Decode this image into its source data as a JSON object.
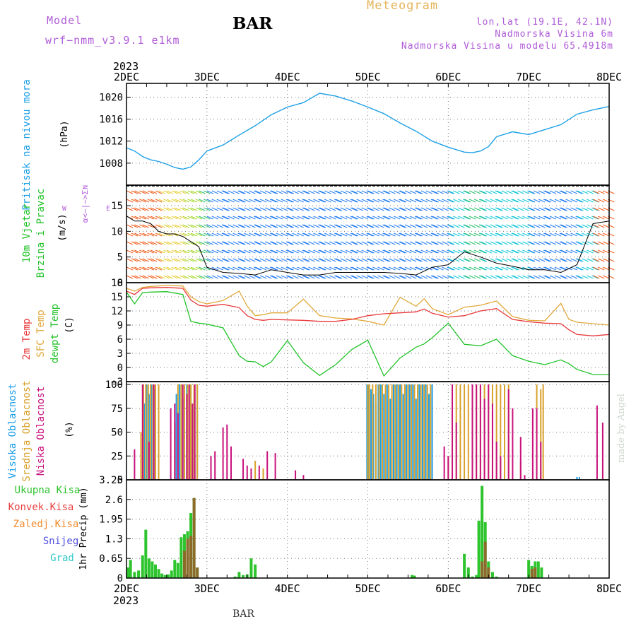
{
  "header": {
    "model_label": "Model",
    "model_name": "wrf−nmm_v3.9.1  e1km",
    "station": "BAR",
    "title": "Meteogram",
    "lonlat": "lon,lat (19.1E, 42.1N)",
    "elevation": "Nadmorska Visina 6m",
    "model_elevation": "Nadmorska Visina u modelu 65.4918m",
    "footer_station": "BAR",
    "credit": "made by Angel"
  },
  "colors": {
    "pressure": "#1ea0e6",
    "temp2m": "#e8383a",
    "sfc_temp": "#e1a83a",
    "dewpt": "#22c32a",
    "high_cloud": "#1e9ee8",
    "mid_cloud": "#d8a12a",
    "low_cloud": "#c8127c",
    "precip_total": "#2ec42e",
    "precip_conv": "#e84040",
    "precip_frozen": "#f08a2a",
    "snow": "#5050e0",
    "graupel": "#30c8c8",
    "accent_label": "#b05cd8"
  },
  "x_axis": {
    "top_year": "2023",
    "bottom_year": "2023",
    "ticks": [
      "2DEC",
      "3DEC",
      "4DEC",
      "5DEC",
      "6DEC",
      "7DEC",
      "8DEC"
    ]
  },
  "chart_data": [
    {
      "type": "line",
      "panel": "pressure",
      "ylabel_main": "Pritisak na nivou mora",
      "ylabel_unit": "(hPa)",
      "yticks": [
        "1008",
        "1012",
        "1016",
        "1020"
      ],
      "ylim": [
        1004,
        1022.5
      ],
      "xlim": [
        0,
        6
      ],
      "x": [
        0,
        0.1,
        0.2,
        0.3,
        0.4,
        0.5,
        0.6,
        0.7,
        0.8,
        0.9,
        1.0,
        1.2,
        1.4,
        1.6,
        1.8,
        2.0,
        2.2,
        2.4,
        2.6,
        2.8,
        3.0,
        3.2,
        3.4,
        3.6,
        3.8,
        4.0,
        4.2,
        4.3,
        4.4,
        4.5,
        4.6,
        4.8,
        5.0,
        5.2,
        5.4,
        5.6,
        5.8,
        6.0
      ],
      "series": [
        {
          "values": [
            1010.8,
            1010.2,
            1009.2,
            1008.6,
            1008.3,
            1007.8,
            1007.2,
            1006.9,
            1007.3,
            1008.6,
            1010.2,
            1011.3,
            1013.1,
            1014.8,
            1016.8,
            1018.2,
            1019.0,
            1020.7,
            1020.2,
            1019.3,
            1018.2,
            1017.0,
            1015.3,
            1013.8,
            1012.0,
            1010.9,
            1010.0,
            1009.9,
            1010.2,
            1011.0,
            1012.8,
            1013.7,
            1013.2,
            1014.1,
            1015.0,
            1016.9,
            1017.7,
            1018.3
          ]
        }
      ]
    },
    {
      "type": "barbs",
      "panel": "wind",
      "ylabel_main": "10m Vjetar",
      "ylabel_sub": "Brzina i Pravac",
      "ylabel_unit": "(m/s)",
      "compass_v": "α<−|−>Σ",
      "compass_w": "W",
      "compass_e": "E",
      "compass_n": "N",
      "yticks": [
        "0",
        "5",
        "10",
        "15"
      ],
      "ylim": [
        0,
        19
      ],
      "xlim": [
        0,
        6
      ],
      "x": [
        0,
        0.1,
        0.2,
        0.3,
        0.4,
        0.5,
        0.6,
        0.7,
        0.8,
        0.9,
        1.0,
        1.2,
        1.4,
        1.6,
        1.8,
        2.0,
        2.2,
        2.4,
        2.6,
        2.8,
        3.0,
        3.2,
        3.4,
        3.6,
        3.8,
        4.0,
        4.2,
        4.4,
        4.6,
        4.8,
        5.0,
        5.2,
        5.4,
        5.6,
        5.8,
        6.0
      ],
      "series": [
        {
          "values": [
            13,
            12,
            12,
            11.5,
            10,
            9.5,
            9.5,
            9,
            8,
            7,
            3,
            2,
            1.8,
            1.5,
            2.5,
            2,
            1.5,
            1.5,
            2,
            2,
            2,
            2,
            1.8,
            1.5,
            3,
            3.5,
            6,
            5,
            3.8,
            3.2,
            2.5,
            2.5,
            2,
            3.5,
            11.5,
            12
          ]
        }
      ]
    },
    {
      "type": "line",
      "panel": "temperature",
      "ylabel_lines": [
        "2m Temp",
        "SFC Temp",
        "dewpt Temp"
      ],
      "ylabel_unit": "(C)",
      "yticks": [
        "−3",
        "0",
        "3",
        "6",
        "9",
        "12",
        "15",
        "18"
      ],
      "ylim": [
        -3,
        18
      ],
      "xlim": [
        0,
        6
      ],
      "x": [
        0,
        0.1,
        0.2,
        0.3,
        0.5,
        0.7,
        0.8,
        0.9,
        1.0,
        1.2,
        1.4,
        1.5,
        1.6,
        1.7,
        1.8,
        2.0,
        2.2,
        2.4,
        2.6,
        2.8,
        3.0,
        3.2,
        3.4,
        3.6,
        3.7,
        3.8,
        4.0,
        4.2,
        4.4,
        4.6,
        4.8,
        5.0,
        5.2,
        5.4,
        5.5,
        5.6,
        5.8,
        6.0
      ],
      "series": [
        {
          "name": "2m Temp",
          "values": [
            16.2,
            15.5,
            16.8,
            16.9,
            17.0,
            16.8,
            14.3,
            13.2,
            13.0,
            13.4,
            12.7,
            11.0,
            10.2,
            10.0,
            10.2,
            10.1,
            10.0,
            9.8,
            9.8,
            10.2,
            11.0,
            11.4,
            11.6,
            11.8,
            12.4,
            11.5,
            10.7,
            11.0,
            12.0,
            12.5,
            10.2,
            9.7,
            9.4,
            9.3,
            8.0,
            7.0,
            6.7,
            7.0
          ]
        },
        {
          "name": "SFC Temp",
          "values": [
            16.8,
            16.2,
            17.0,
            17.2,
            17.4,
            17.3,
            15.0,
            14.0,
            13.5,
            14.2,
            16.2,
            13.0,
            11.0,
            11.2,
            11.6,
            11.6,
            14.5,
            11.0,
            10.5,
            10.3,
            9.8,
            9.0,
            14.9,
            13.0,
            14.6,
            12.5,
            11.2,
            12.8,
            13.2,
            14.1,
            10.8,
            10.0,
            9.9,
            13.6,
            10.2,
            9.6,
            9.3,
            9.0
          ]
        },
        {
          "name": "dewpt Temp",
          "values": [
            16.0,
            13.5,
            15.9,
            16.0,
            16.1,
            15.5,
            9.8,
            9.4,
            9.2,
            8.4,
            2.5,
            1.3,
            1.2,
            0.2,
            1.2,
            5.7,
            1.0,
            -1.7,
            0.6,
            3.8,
            5.8,
            -1.8,
            2.0,
            4.3,
            5.0,
            6.3,
            9.4,
            4.9,
            4.6,
            6.0,
            2.5,
            1.3,
            0.6,
            1.6,
            0.8,
            -0.4,
            -1.5,
            -1.5
          ]
        }
      ]
    },
    {
      "type": "bar",
      "panel": "cloud",
      "ylabel_lines": [
        "Visoka Oblacnost",
        "Srednja Oblacnost",
        "Niska Oblacnost"
      ],
      "ylabel_unit": "(%)",
      "yticks": [
        "0",
        "25",
        "50",
        "75",
        "100"
      ],
      "ylim": [
        0,
        103
      ],
      "xlim": [
        0,
        6
      ],
      "series": [
        {
          "name": "Visoka Oblacnost",
          "x": [
            0.22,
            0.25,
            0.28,
            0.31,
            0.34,
            0.62,
            0.66,
            0.7,
            0.75,
            0.8,
            0.84,
            0.88,
            2.99,
            3.01,
            3.04,
            3.07,
            3.1,
            3.13,
            3.16,
            3.2,
            3.24,
            3.28,
            3.32,
            3.36,
            3.4,
            3.44,
            3.48,
            3.52,
            3.56,
            3.6,
            3.64,
            3.68,
            3.72,
            3.76,
            3.8,
            4.4,
            5.6,
            5.63
          ],
          "values": [
            80,
            100,
            90,
            100,
            95,
            90,
            100,
            85,
            100,
            100,
            85,
            100,
            100,
            100,
            95,
            90,
            80,
            100,
            100,
            90,
            100,
            85,
            100,
            100,
            100,
            90,
            100,
            100,
            100,
            85,
            100,
            100,
            100,
            90,
            100,
            5,
            3,
            3
          ]
        },
        {
          "name": "Srednja Oblacnost",
          "x": [
            0.18,
            0.21,
            0.24,
            0.27,
            0.3,
            0.33,
            0.36,
            0.4,
            0.6,
            0.64,
            0.68,
            0.72,
            0.76,
            0.8,
            0.84,
            0.88,
            1.6,
            1.7,
            3.0,
            3.02,
            3.06,
            3.1,
            3.14,
            3.18,
            3.22,
            3.26,
            3.3,
            3.34,
            3.38,
            3.42,
            3.46,
            3.5,
            3.54,
            3.58,
            3.62,
            3.66,
            3.7,
            3.74,
            3.78,
            4.0,
            4.05,
            4.1,
            4.15,
            4.2,
            4.25,
            4.3,
            4.35,
            4.4,
            4.45,
            4.5,
            4.55,
            4.6,
            4.65,
            4.7,
            4.75,
            4.9,
            5.1,
            5.15,
            5.18
          ],
          "values": [
            50,
            100,
            100,
            100,
            100,
            100,
            100,
            100,
            60,
            100,
            100,
            100,
            100,
            100,
            100,
            100,
            20,
            12,
            100,
            100,
            100,
            100,
            100,
            100,
            100,
            100,
            100,
            100,
            100,
            100,
            100,
            100,
            100,
            100,
            100,
            100,
            100,
            100,
            100,
            25,
            100,
            100,
            100,
            100,
            100,
            100,
            100,
            100,
            100,
            100,
            100,
            100,
            100,
            100,
            100,
            20,
            100,
            95,
            100
          ]
        },
        {
          "name": "Niska Oblacnost",
          "x": [
            0.1,
            0.2,
            0.28,
            0.34,
            0.55,
            0.6,
            0.64,
            0.7,
            0.75,
            0.78,
            0.82,
            0.85,
            1.05,
            1.1,
            1.2,
            1.25,
            1.3,
            1.45,
            1.5,
            1.55,
            1.65,
            1.75,
            1.85,
            2.1,
            2.2,
            3.95,
            4.0,
            4.05,
            4.1,
            4.3,
            4.35,
            4.4,
            4.45,
            4.5,
            4.55,
            4.6,
            4.65,
            4.75,
            4.8,
            4.9,
            4.95,
            5.05,
            5.1,
            5.15,
            5.85,
            5.92
          ],
          "values": [
            32,
            100,
            40,
            100,
            75,
            80,
            70,
            100,
            90,
            100,
            80,
            100,
            25,
            30,
            55,
            58,
            35,
            22,
            15,
            12,
            15,
            30,
            28,
            10,
            5,
            35,
            25,
            100,
            60,
            100,
            100,
            100,
            85,
            100,
            80,
            40,
            25,
            95,
            75,
            45,
            5,
            75,
            75,
            40,
            78,
            60
          ]
        }
      ]
    },
    {
      "type": "bar",
      "panel": "precip",
      "ylabel_lines": [
        "Ukupna  Kisa",
        "Konvek.Kisa",
        "Zaledj.Kisa",
        "Snijeg",
        "Grad"
      ],
      "ylabel_unit": "1hr Precip (mm)",
      "yticks": [
        "0",
        "0.65",
        "1.3",
        "1.95",
        "2.6",
        "3.25"
      ],
      "ylim": [
        0,
        3.25
      ],
      "xlim": [
        0,
        6
      ],
      "series": [
        {
          "name": "Ukupna  Kisa",
          "x": [
            0.02,
            0.05,
            0.1,
            0.15,
            0.2,
            0.24,
            0.28,
            0.32,
            0.36,
            0.4,
            0.44,
            0.48,
            0.52,
            0.56,
            0.6,
            0.64,
            0.68,
            0.72,
            0.76,
            0.8,
            0.84,
            0.88,
            1.35,
            1.4,
            1.45,
            1.5,
            1.55,
            1.6,
            3.55,
            3.58,
            4.2,
            4.25,
            4.3,
            4.35,
            4.38,
            4.42,
            4.46,
            4.5,
            4.55,
            4.6,
            5.0,
            5.04,
            5.08,
            5.12,
            5.16
          ],
          "values": [
            0.35,
            0.6,
            0.2,
            0.25,
            0.75,
            1.6,
            0.65,
            0.55,
            0.45,
            0.3,
            0.15,
            0.1,
            0.12,
            0.25,
            0.6,
            0.5,
            1.35,
            1.45,
            1.55,
            2.15,
            2.65,
            0.35,
            0.05,
            0.2,
            0.1,
            0.12,
            0.65,
            0.45,
            0.1,
            0.08,
            0.8,
            0.35,
            0.05,
            0.1,
            1.9,
            3.05,
            1.85,
            0.55,
            0.2,
            0.05,
            0.6,
            0.4,
            0.55,
            0.55,
            0.35
          ]
        },
        {
          "name": "Konvek.Kisa",
          "x": [
            0.72,
            0.76,
            0.8,
            0.84,
            0.88,
            4.42,
            4.46,
            4.5,
            5.04,
            5.08
          ],
          "values": [
            0.9,
            1.3,
            1.4,
            2.65,
            0.35,
            0.55,
            1.2,
            0.35,
            0.3,
            0.35
          ]
        }
      ]
    }
  ]
}
